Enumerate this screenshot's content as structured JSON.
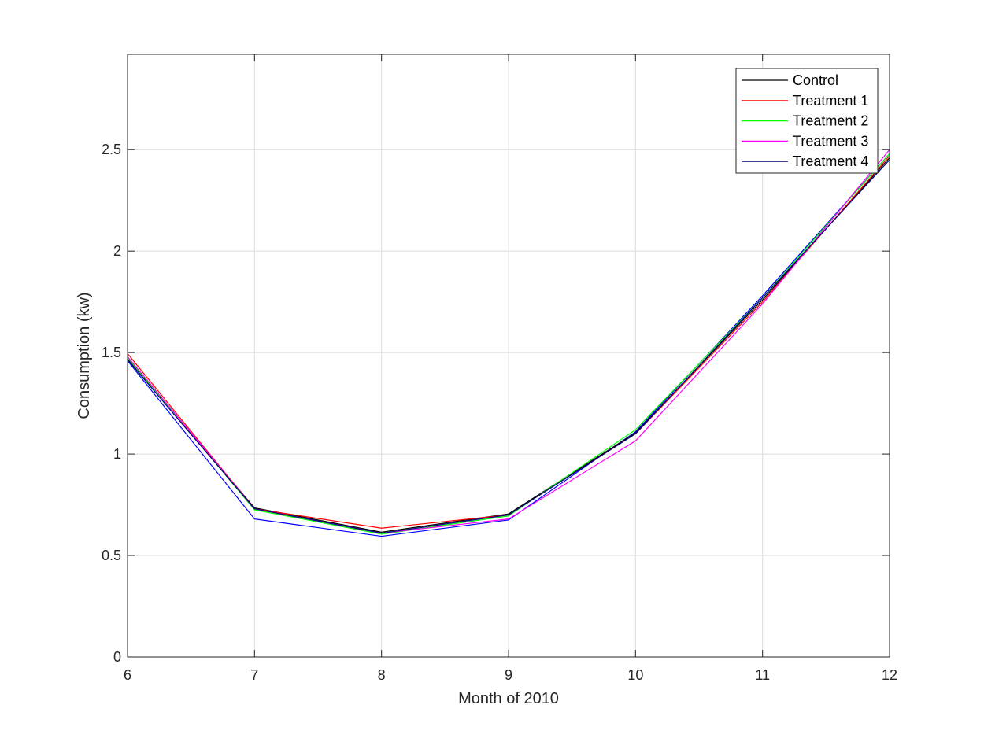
{
  "chart_data": {
    "type": "line",
    "title": "",
    "xlabel": "Month of 2010",
    "ylabel": "Consumption (kw)",
    "xlim": [
      6,
      12
    ],
    "ylim": [
      0,
      2.97
    ],
    "x": [
      6,
      7,
      8,
      9,
      10,
      11,
      12
    ],
    "x_ticks": [
      "6",
      "7",
      "8",
      "9",
      "10",
      "11",
      "12"
    ],
    "y_ticks": [
      0,
      0.5,
      1,
      1.5,
      2,
      2.5
    ],
    "y_tick_labels": [
      "0",
      "0.5",
      "1",
      "1.5",
      "2",
      "2.5"
    ],
    "grid": true,
    "legend_position": "top-right",
    "series": [
      {
        "name": "Control",
        "color": "#000000",
        "values": [
          1.47,
          0.735,
          0.615,
          0.705,
          1.105,
          1.76,
          2.46
        ],
        "in_legend": true
      },
      {
        "name": "Treatment 1",
        "color": "#ff0000",
        "values": [
          1.495,
          0.73,
          0.635,
          0.7,
          1.1,
          1.75,
          2.47
        ],
        "in_legend": true
      },
      {
        "name": "Treatment 2",
        "color": "#00ff00",
        "values": [
          1.475,
          0.725,
          0.605,
          0.695,
          1.12,
          1.77,
          2.48
        ],
        "in_legend": true
      },
      {
        "name": "Treatment 3",
        "color": "#ff00ff",
        "values": [
          1.48,
          0.73,
          0.61,
          0.68,
          1.065,
          1.74,
          2.5
        ],
        "in_legend": true
      },
      {
        "name": "Treatment 4",
        "color": "#000080",
        "values": [
          1.465,
          0.73,
          0.61,
          0.7,
          1.1,
          1.77,
          2.45
        ],
        "in_legend": true
      },
      {
        "name": "",
        "color": "#0000ff",
        "values": [
          1.46,
          0.68,
          0.595,
          0.675,
          1.11,
          1.78,
          2.48
        ],
        "in_legend": false
      }
    ]
  }
}
